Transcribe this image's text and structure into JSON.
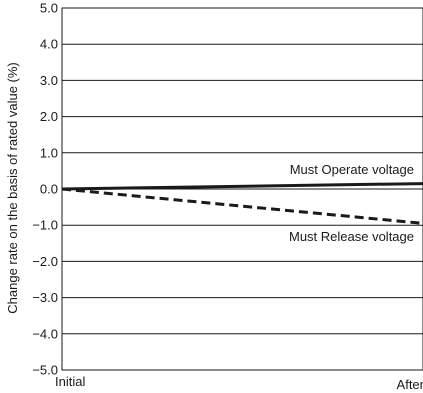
{
  "chart_data": {
    "type": "line",
    "title": "",
    "xlabel": "",
    "ylabel": "Change rate on the basis of rated value (%)",
    "categories": [
      "Initial",
      "After"
    ],
    "ylim": [
      -5.0,
      5.0
    ],
    "yticks": [
      "5.0",
      "4.0",
      "3.0",
      "2.0",
      "1.0",
      "0.0",
      "-1.0",
      "-2.0",
      "-3.0",
      "-4.0",
      "-5.0"
    ],
    "grid": true,
    "series": [
      {
        "name": "Must Operate voltage",
        "style": "solid",
        "color": "#1a1a1a",
        "values": [
          0.0,
          0.15
        ]
      },
      {
        "name": "Must Release voltage",
        "style": "dashed",
        "color": "#1a1a1a",
        "values": [
          0.0,
          -0.95
        ]
      }
    ]
  }
}
